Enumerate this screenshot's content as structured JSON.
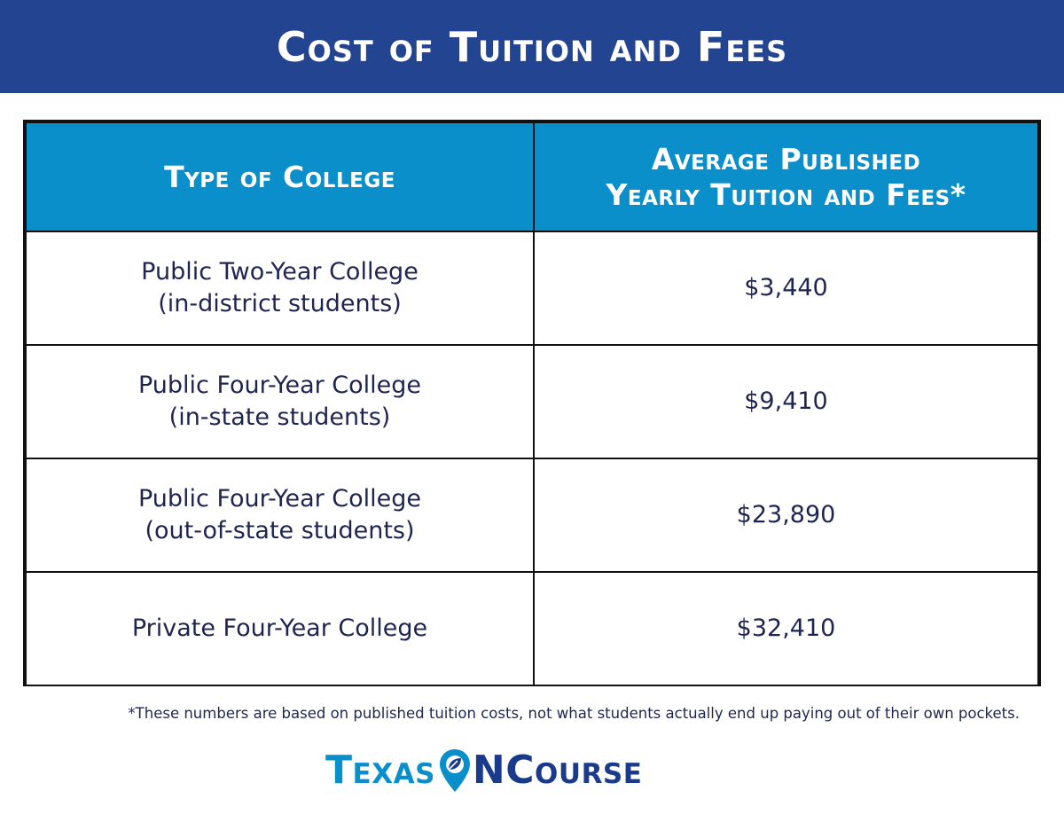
{
  "title": "Cost of Tuition and Fees",
  "table": {
    "headers": {
      "type": "Type of College",
      "cost_line1": "Average Published",
      "cost_line2": "Yearly Tuition and Fees*"
    },
    "rows": [
      {
        "line1": "Public Two-Year College",
        "line2": "(in-district students)",
        "cost": "$3,440"
      },
      {
        "line1": "Public Four-Year College",
        "line2": "(in-state students)",
        "cost": "$9,410"
      },
      {
        "line1": "Public Four-Year College",
        "line2": "(out-of-state students)",
        "cost": "$23,890"
      },
      {
        "line1": "Private Four-Year College",
        "line2": "",
        "cost": "$32,410"
      }
    ]
  },
  "footnote": "*These numbers are based on published tuition costs, not what students actually end up paying out of their own pockets.",
  "logo": {
    "part1": "Texas",
    "part2": "N",
    "part3": "Course",
    "icon": "map-pin-leaf-icon"
  },
  "colors": {
    "banner": "#234490",
    "header": "#0b8fca",
    "text": "#1f2450",
    "logo_light": "#0b8fca",
    "logo_dark": "#1a3b8c"
  }
}
